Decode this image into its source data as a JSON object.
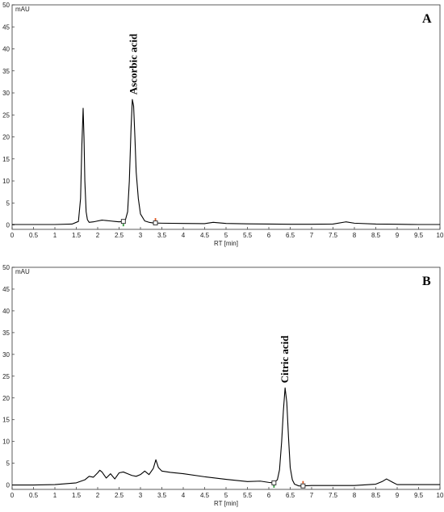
{
  "chart_data": [
    {
      "type": "line",
      "panel_label": "A",
      "xlabel": "RT [min]",
      "ylabel": "mAU",
      "xlim": [
        0,
        10
      ],
      "ylim": [
        -1,
        50
      ],
      "x_ticks": [
        0,
        0.5,
        1,
        1.5,
        2,
        2.5,
        3,
        3.5,
        4,
        4.5,
        5,
        5.5,
        6,
        6.5,
        7,
        7.5,
        8,
        8.5,
        9,
        9.5,
        10
      ],
      "x_tick_labels": [
        "0",
        "0.5",
        "1",
        "1.5",
        "2",
        "2.5",
        "3",
        "3.5",
        "4",
        "4.5",
        "5",
        "5.5",
        "6",
        "6.5",
        "7",
        "7.5",
        "8",
        "8.5",
        "9",
        "9.5",
        "10"
      ],
      "y_ticks": [
        0,
        5,
        10,
        15,
        20,
        25,
        30,
        35,
        40,
        45,
        50
      ],
      "y_tick_labels": [
        "0",
        "5",
        "10",
        "15",
        "20",
        "25",
        "30",
        "35",
        "40",
        "45",
        "50"
      ],
      "grid": false,
      "series": [
        {
          "color": "#000000",
          "x": [
            0,
            0.5,
            1.0,
            1.4,
            1.55,
            1.6,
            1.63,
            1.66,
            1.68,
            1.7,
            1.73,
            1.76,
            1.8,
            1.9,
            2.0,
            2.1,
            2.2,
            2.3,
            2.4,
            2.5,
            2.6,
            2.65,
            2.7,
            2.74,
            2.78,
            2.81,
            2.84,
            2.87,
            2.9,
            2.95,
            3.0,
            3.1,
            3.2,
            3.3,
            3.5,
            4.0,
            4.5,
            4.7,
            5.0,
            5.5,
            6.0,
            6.5,
            7.0,
            7.5,
            7.8,
            8.0,
            8.5,
            9.0,
            9.5,
            10
          ],
          "y": [
            0.1,
            0.1,
            0.1,
            0.2,
            0.8,
            6,
            18,
            26.5,
            20,
            10,
            3,
            1.2,
            0.6,
            0.7,
            0.9,
            1.1,
            1.0,
            0.9,
            0.8,
            0.7,
            0.8,
            1.2,
            3,
            10,
            22,
            28.5,
            27,
            20,
            12,
            6,
            2.5,
            0.9,
            0.6,
            0.45,
            0.4,
            0.35,
            0.3,
            0.6,
            0.35,
            0.25,
            0.2,
            0.15,
            0.15,
            0.2,
            0.7,
            0.4,
            0.2,
            0.15,
            0.1,
            0.1
          ]
        }
      ],
      "annotations": [
        {
          "text": "Ascorbic acid",
          "x": 2.84,
          "y": 28.5
        }
      ],
      "baseline_markers": [
        {
          "x": 2.6,
          "y": 0.8
        },
        {
          "x": 3.35,
          "y": 0.45
        }
      ]
    },
    {
      "type": "line",
      "panel_label": "B",
      "xlabel": "RT [min]",
      "ylabel": "mAU",
      "xlim": [
        0,
        10
      ],
      "ylim": [
        -1,
        50
      ],
      "x_ticks": [
        0,
        0.5,
        1,
        1.5,
        2,
        2.5,
        3,
        3.5,
        4,
        4.5,
        5,
        5.5,
        6,
        6.5,
        7,
        7.5,
        8,
        8.5,
        9,
        9.5,
        10
      ],
      "x_tick_labels": [
        "0",
        "0.5",
        "1",
        "1.5",
        "2",
        "2.5",
        "3",
        "3.5",
        "4",
        "4.5",
        "5",
        "5.5",
        "6",
        "6.5",
        "7",
        "7.5",
        "8",
        "8.5",
        "9",
        "9.5",
        "10"
      ],
      "y_ticks": [
        0,
        5,
        10,
        15,
        20,
        25,
        30,
        35,
        40,
        45,
        50
      ],
      "y_tick_labels": [
        "0",
        "5",
        "10",
        "15",
        "20",
        "25",
        "30",
        "35",
        "40",
        "45",
        "50"
      ],
      "grid": false,
      "series": [
        {
          "color": "#000000",
          "x": [
            0,
            0.5,
            1.0,
            1.5,
            1.7,
            1.8,
            1.9,
            2.0,
            2.05,
            2.1,
            2.2,
            2.3,
            2.4,
            2.5,
            2.6,
            2.7,
            2.8,
            2.9,
            3.0,
            3.1,
            3.2,
            3.3,
            3.36,
            3.42,
            3.5,
            3.7,
            4.0,
            4.5,
            5.0,
            5.5,
            5.8,
            6.0,
            6.1,
            6.2,
            6.25,
            6.3,
            6.34,
            6.38,
            6.42,
            6.46,
            6.5,
            6.55,
            6.6,
            6.7,
            6.8,
            7.0,
            7.5,
            8.0,
            8.5,
            8.65,
            8.75,
            8.9,
            9.0,
            9.5,
            10
          ],
          "y": [
            0.0,
            0.0,
            0.1,
            0.5,
            1.2,
            2.0,
            1.8,
            2.8,
            3.4,
            3.0,
            1.6,
            2.6,
            1.4,
            2.8,
            3.0,
            2.6,
            2.2,
            2.0,
            2.4,
            3.2,
            2.4,
            3.8,
            5.8,
            4.0,
            3.2,
            2.9,
            2.6,
            1.9,
            1.3,
            0.8,
            0.9,
            0.6,
            0.5,
            1.2,
            3.5,
            10,
            17,
            22.3,
            19,
            11,
            4,
            1.2,
            0.2,
            -0.2,
            -0.2,
            -0.1,
            -0.1,
            -0.1,
            0.2,
            0.8,
            1.4,
            0.6,
            0.1,
            0.1,
            0.1
          ]
        }
      ],
      "annotations": [
        {
          "text": "Citric acid",
          "x": 6.38,
          "y": 22.3
        }
      ],
      "baseline_markers": [
        {
          "x": 6.12,
          "y": 0.5
        },
        {
          "x": 6.8,
          "y": -0.2
        }
      ]
    }
  ]
}
